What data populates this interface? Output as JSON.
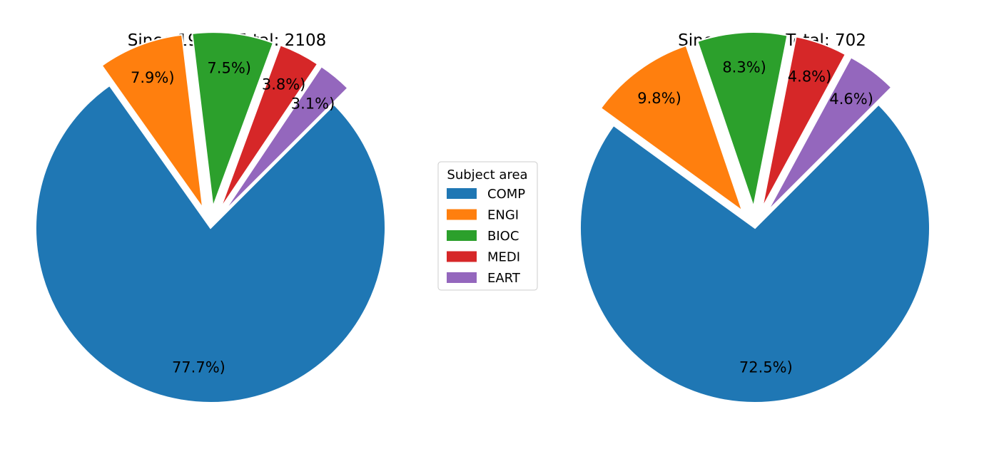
{
  "chart_data": [
    {
      "type": "pie",
      "title": "Since 1990 - Total: 2108",
      "categories": [
        "COMP",
        "ENGI",
        "BIOC",
        "MEDI",
        "EART"
      ],
      "values": [
        77.7,
        7.9,
        7.5,
        3.8,
        3.1
      ],
      "labels": [
        "77.7%)",
        "7.9%)",
        "7.5%)",
        "3.8%)",
        "3.1%)"
      ],
      "start_angle_deg": 45,
      "direction": "clockwise",
      "exploded_slices": [
        "ENGI",
        "BIOC",
        "MEDI",
        "EART"
      ]
    },
    {
      "type": "pie",
      "title": "Since 2020 - Total: 702",
      "categories": [
        "COMP",
        "ENGI",
        "BIOC",
        "MEDI",
        "EART"
      ],
      "values": [
        72.5,
        9.8,
        8.3,
        4.8,
        4.6
      ],
      "labels": [
        "72.5%)",
        "9.8%)",
        "8.3%)",
        "4.8%)",
        "4.6%)"
      ],
      "start_angle_deg": 45,
      "direction": "clockwise",
      "exploded_slices": [
        "ENGI",
        "BIOC",
        "MEDI",
        "EART"
      ]
    }
  ],
  "legend": {
    "title": "Subject area",
    "placement": "center",
    "items": [
      {
        "label": "COMP",
        "color": "#1f77b4"
      },
      {
        "label": "ENGI",
        "color": "#ff7f0e"
      },
      {
        "label": "BIOC",
        "color": "#2ca02c"
      },
      {
        "label": "MEDI",
        "color": "#d62728"
      },
      {
        "label": "EART",
        "color": "#9467bd"
      }
    ]
  }
}
